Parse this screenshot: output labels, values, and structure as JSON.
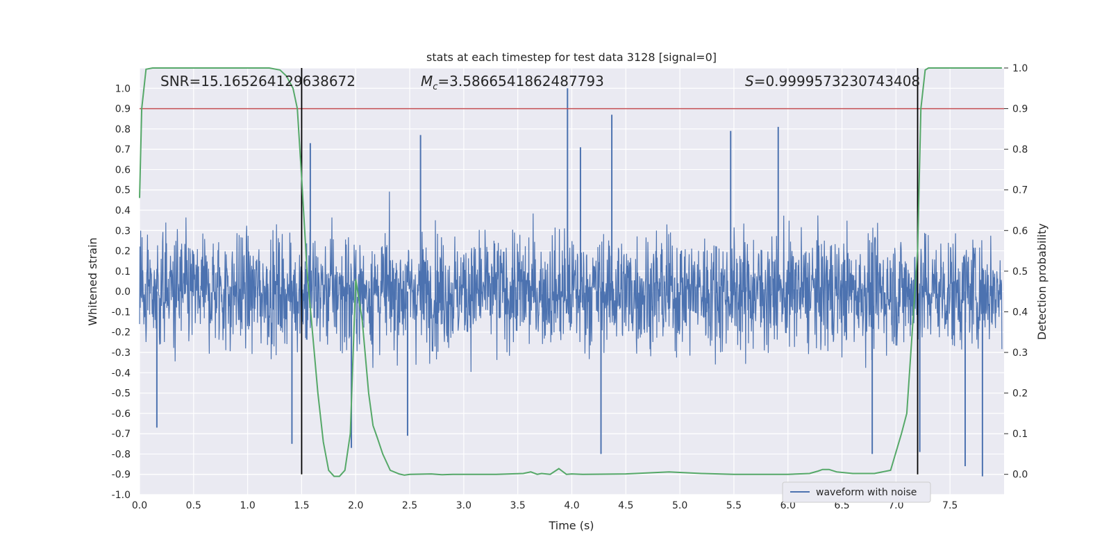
{
  "chart_data": {
    "type": "line",
    "title": "stats at each timestep for test data 3128 [signal=0]",
    "xlabel": "Time (s)",
    "ylabel_left": "Whitened strain",
    "ylabel_right": "Detection probability",
    "xlim": [
      0.0,
      8.0
    ],
    "ylim_left": [
      -1.0,
      1.1
    ],
    "ylim_right": [
      -0.05,
      1.0
    ],
    "x_ticks": [
      "0.0",
      "0.5",
      "1.0",
      "1.5",
      "2.0",
      "2.5",
      "3.0",
      "3.5",
      "4.0",
      "4.5",
      "5.0",
      "5.5",
      "6.0",
      "6.5",
      "7.0",
      "7.5"
    ],
    "y_ticks_left": [
      "-1.0",
      "-0.9",
      "-0.8",
      "-0.7",
      "-0.6",
      "-0.5",
      "-0.4",
      "-0.3",
      "-0.2",
      "-0.1",
      "0.0",
      "0.1",
      "0.2",
      "0.3",
      "0.4",
      "0.5",
      "0.6",
      "0.7",
      "0.8",
      "0.9",
      "1.0"
    ],
    "y_ticks_right": [
      "0.0",
      "0.1",
      "0.2",
      "0.3",
      "0.4",
      "0.5",
      "0.6",
      "0.7",
      "0.8",
      "0.9",
      "1.0"
    ],
    "grid": true,
    "background": "#eaeaf2",
    "annotations": {
      "snr": "SNR=15.165264129638672",
      "mc_symbol": "M",
      "mc_sub": "c",
      "mc_value": "=3.5866541862487793",
      "s_symbol": "S",
      "s_value": "=0.9999573230743408"
    },
    "threshold_line": {
      "y_right": 0.9,
      "color": "#c44e52"
    },
    "vertical_lines": [
      1.5,
      7.2
    ],
    "legend": {
      "position": "lower-right",
      "label": "waveform with noise"
    },
    "series": [
      {
        "name": "waveform with noise",
        "axis": "left",
        "color": "#4c72b0",
        "style": "noise",
        "typical_envelope": [
          -0.28,
          0.25
        ],
        "spikes": [
          {
            "x": 3.96,
            "y": 1.0
          },
          {
            "x": 4.37,
            "y": 0.87
          },
          {
            "x": 5.91,
            "y": 0.81
          },
          {
            "x": 5.47,
            "y": 0.79
          },
          {
            "x": 2.6,
            "y": 0.77
          },
          {
            "x": 1.58,
            "y": 0.73
          },
          {
            "x": 4.08,
            "y": 0.71
          },
          {
            "x": 7.8,
            "y": -0.91
          },
          {
            "x": 7.64,
            "y": -0.86
          },
          {
            "x": 4.27,
            "y": -0.8
          },
          {
            "x": 6.78,
            "y": -0.8
          },
          {
            "x": 1.96,
            "y": -0.77
          },
          {
            "x": 1.41,
            "y": -0.75
          },
          {
            "x": 2.48,
            "y": -0.71
          },
          {
            "x": 0.16,
            "y": -0.67
          },
          {
            "x": 7.22,
            "y": -0.79
          }
        ]
      },
      {
        "name": "",
        "axis": "right",
        "color": "#55a868",
        "x": [
          0.0,
          0.02,
          0.06,
          0.12,
          0.2,
          0.4,
          0.7,
          1.0,
          1.2,
          1.3,
          1.36,
          1.42,
          1.46,
          1.5,
          1.55,
          1.6,
          1.65,
          1.7,
          1.75,
          1.8,
          1.85,
          1.9,
          1.95,
          2.0,
          2.06,
          2.12,
          2.16,
          2.2,
          2.25,
          2.32,
          2.4,
          2.45,
          2.5,
          2.7,
          2.8,
          2.9,
          3.0,
          3.3,
          3.55,
          3.62,
          3.68,
          3.72,
          3.8,
          3.88,
          3.95,
          4.0,
          4.1,
          4.5,
          4.9,
          5.05,
          5.2,
          5.5,
          6.0,
          6.2,
          6.28,
          6.32,
          6.38,
          6.45,
          6.6,
          6.8,
          6.95,
          7.05,
          7.1,
          7.15,
          7.2,
          7.23,
          7.27,
          7.3,
          7.35,
          7.5,
          7.98
        ],
        "y": [
          0.68,
          0.9,
          0.997,
          1.0,
          1.0,
          1.0,
          1.0,
          1.0,
          1.0,
          0.995,
          0.98,
          0.95,
          0.9,
          0.73,
          0.5,
          0.35,
          0.2,
          0.08,
          0.01,
          -0.005,
          -0.005,
          0.01,
          0.1,
          0.48,
          0.38,
          0.2,
          0.12,
          0.09,
          0.05,
          0.01,
          0.001,
          -0.002,
          0.0,
          0.001,
          -0.001,
          0.0,
          0.0,
          0.0,
          0.002,
          0.006,
          0.0,
          0.002,
          0.0,
          0.014,
          0.0,
          0.001,
          0.0,
          0.001,
          0.006,
          0.004,
          0.002,
          0.0,
          0.0,
          0.002,
          0.008,
          0.012,
          0.012,
          0.006,
          0.002,
          0.002,
          0.01,
          0.1,
          0.15,
          0.35,
          0.55,
          0.9,
          0.995,
          1.0,
          1.0,
          1.0,
          1.0
        ]
      }
    ]
  }
}
